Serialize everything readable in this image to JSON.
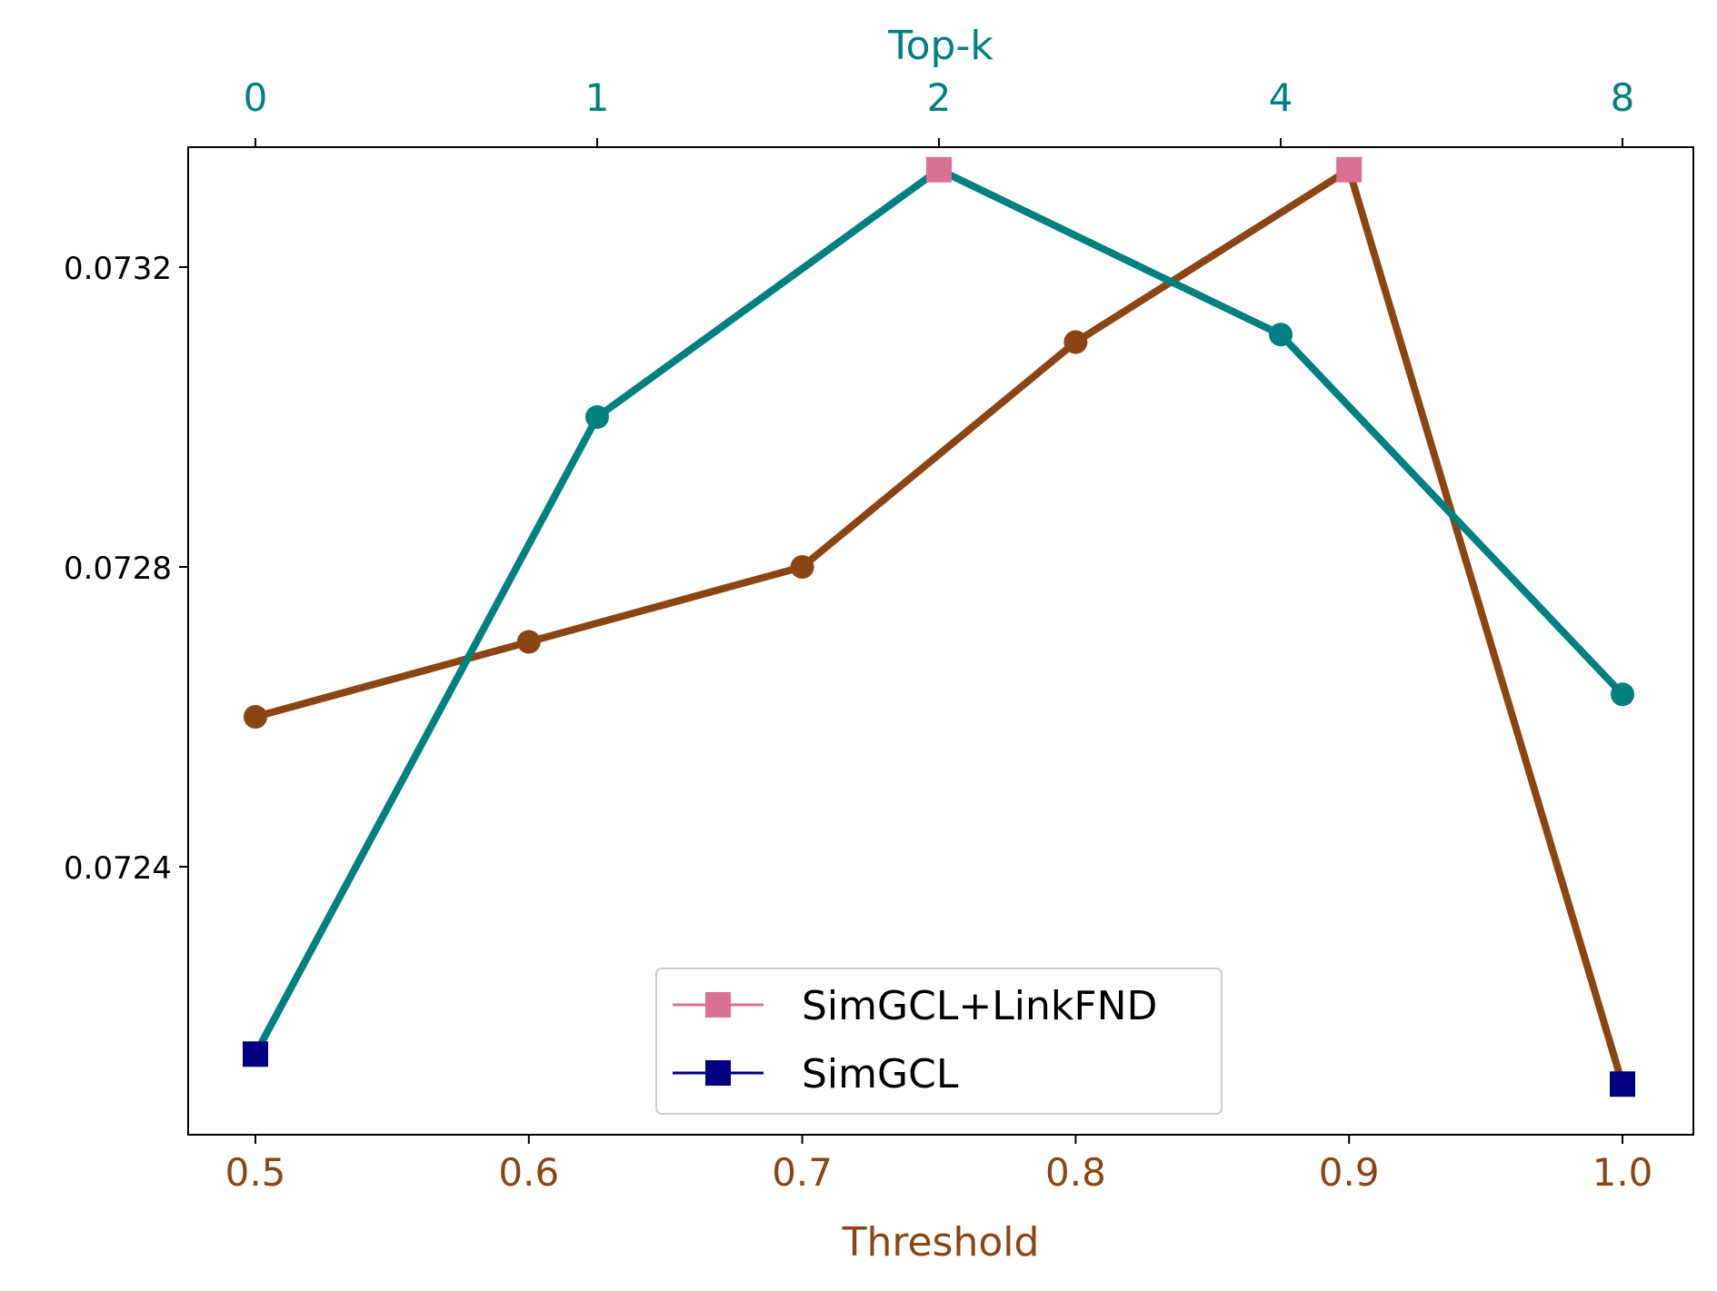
{
  "chart_data": {
    "type": "line",
    "title": "",
    "xlabel": "Threshold",
    "x2label": "Top-k",
    "ylabel": "",
    "ylim": [
      0.07216,
      0.07334
    ],
    "x_threshold_ticks": [
      "0.5",
      "0.6",
      "0.7",
      "0.8",
      "0.9",
      "1.0"
    ],
    "x_topk_ticks": [
      "0",
      "1",
      "2",
      "4",
      "8"
    ],
    "y_ticks": [
      0.0724,
      0.0728,
      0.0732
    ],
    "y_tick_labels": [
      "0.0724",
      "0.0728",
      "0.0732"
    ],
    "grid": false,
    "legend_position": "bottom-center",
    "legend": [
      {
        "label": "SimGCL+LinkFND",
        "color": "#DB7093",
        "marker": "square"
      },
      {
        "label": "SimGCL",
        "color": "#000080",
        "marker": "square"
      }
    ],
    "series": [
      {
        "axis": "Threshold",
        "color": "#8B4513",
        "x": [
          0.5,
          0.6,
          0.7,
          0.8,
          0.9,
          1.0
        ],
        "values": [
          0.0726,
          0.0727,
          0.0728,
          0.0731,
          0.07333,
          0.07211
        ],
        "marker_colors": [
          "#8B4513",
          "#8B4513",
          "#8B4513",
          "#8B4513",
          "#DB7093",
          "#000080"
        ],
        "markers": [
          "circle",
          "circle",
          "circle",
          "circle",
          "square",
          "square"
        ]
      },
      {
        "axis": "Top-k",
        "color": "#008080",
        "x": [
          "0",
          "1",
          "2",
          "4",
          "8"
        ],
        "values": [
          0.07215,
          0.073,
          0.07333,
          0.07311,
          0.07263
        ],
        "marker_colors": [
          "#000080",
          "#008080",
          "#DB7093",
          "#008080",
          "#008080"
        ],
        "markers": [
          "square",
          "circle",
          "square",
          "circle",
          "circle"
        ]
      }
    ],
    "colors": {
      "threshold_axis": "#8B4513",
      "topk_axis": "#008080",
      "simgcl_linkfnd": "#DB7093",
      "simgcl": "#000080"
    }
  }
}
